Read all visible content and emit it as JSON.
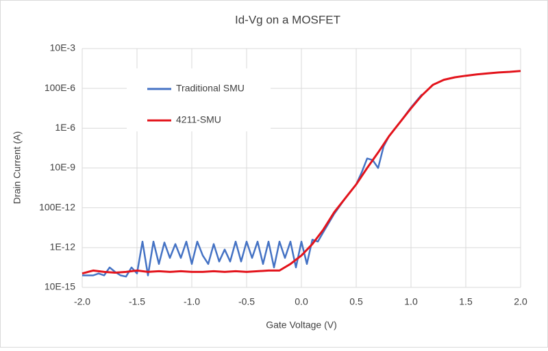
{
  "chart_data": {
    "type": "line",
    "title": "Id-Vg on a MOSFET",
    "x_label": "Gate Voltage (V)",
    "y_label": "Drain Current (A)",
    "log_y": true,
    "grid": true,
    "legend": "upper-left",
    "xlim": [
      -2,
      2
    ],
    "xticks": [
      {
        "value": -2,
        "label": "-2.0"
      },
      {
        "value": -1.5,
        "label": "-1.5"
      },
      {
        "value": -1,
        "label": "-1.0"
      },
      {
        "value": -0.5,
        "label": "-0.5"
      },
      {
        "value": 0,
        "label": "0.0"
      },
      0.5,
      {
        "value": 1,
        "label": "1.0"
      },
      1.5,
      {
        "value": 2,
        "label": "2.0"
      }
    ],
    "ylim": [
      1e-14,
      0.01
    ],
    "yticks": [
      {
        "value": 1e-14,
        "label": "10E-15"
      },
      {
        "value": 1e-12,
        "label": "1E-12"
      },
      {
        "value": 1e-10,
        "label": "100E-12"
      },
      {
        "value": 1e-08,
        "label": "10E-9"
      },
      {
        "value": 1e-06,
        "label": "1E-6"
      },
      {
        "value": 0.0001,
        "label": "100E-6"
      },
      {
        "value": 0.01,
        "label": "10E-3"
      }
    ],
    "series": [
      {
        "name": "Traditional SMU",
        "color": "#4472c4",
        "x": [
          -2.0,
          -1.9,
          -1.85,
          -1.8,
          -1.75,
          -1.7,
          -1.65,
          -1.6,
          -1.55,
          -1.5,
          -1.45,
          -1.4,
          -1.35,
          -1.3,
          -1.25,
          -1.2,
          -1.15,
          -1.1,
          -1.05,
          -1.0,
          -0.95,
          -0.9,
          -0.85,
          -0.8,
          -0.75,
          -0.7,
          -0.65,
          -0.6,
          -0.55,
          -0.5,
          -0.45,
          -0.4,
          -0.35,
          -0.3,
          -0.25,
          -0.2,
          -0.15,
          -0.1,
          -0.05,
          0.0,
          0.05,
          0.1,
          0.15,
          0.2,
          0.3,
          0.4,
          0.5,
          0.55,
          0.6,
          0.65,
          0.7,
          0.75,
          0.8,
          0.9,
          1.0,
          1.1
        ],
        "values": [
          4e-14,
          4e-14,
          5e-14,
          4e-14,
          1e-13,
          6e-14,
          4e-14,
          3.5e-14,
          1e-13,
          5e-14,
          2e-12,
          4e-14,
          2e-12,
          1.5e-13,
          1.8e-12,
          3e-13,
          1.5e-12,
          3e-13,
          2e-12,
          1.5e-13,
          2e-12,
          4e-13,
          1.5e-13,
          1.5e-12,
          2e-13,
          8e-13,
          2e-13,
          2e-12,
          2e-13,
          2e-12,
          3e-13,
          2e-12,
          1.5e-13,
          2e-12,
          1e-13,
          2e-12,
          3e-13,
          2e-12,
          1e-13,
          2e-12,
          1.5e-13,
          2.5e-12,
          2e-12,
          6e-12,
          5e-11,
          3e-10,
          1.5e-09,
          6e-09,
          3e-08,
          2.5e-08,
          1e-08,
          1.2e-07,
          4e-07,
          2e-06,
          1.1e-05,
          5e-05
        ]
      },
      {
        "name": "4211-SMU",
        "color": "#e3131b",
        "x": [
          -2.0,
          -1.9,
          -1.8,
          -1.7,
          -1.6,
          -1.5,
          -1.4,
          -1.3,
          -1.2,
          -1.1,
          -1.0,
          -0.9,
          -0.8,
          -0.7,
          -0.6,
          -0.5,
          -0.4,
          -0.3,
          -0.2,
          -0.1,
          0.0,
          0.1,
          0.2,
          0.3,
          0.4,
          0.5,
          0.6,
          0.7,
          0.8,
          0.9,
          1.0,
          1.1,
          1.2,
          1.3,
          1.4,
          1.5,
          1.6,
          1.7,
          1.8,
          1.9,
          2.0
        ],
        "values": [
          5e-14,
          7e-14,
          6e-14,
          5.5e-14,
          6e-14,
          7e-14,
          6e-14,
          6.5e-14,
          6e-14,
          6.5e-14,
          6e-14,
          6e-14,
          6.5e-14,
          6e-14,
          6.5e-14,
          6e-14,
          6.5e-14,
          7e-14,
          7e-14,
          1.5e-13,
          4e-13,
          1.5e-12,
          8e-12,
          6e-11,
          3e-10,
          1.5e-09,
          1e-08,
          6e-08,
          4e-07,
          2e-06,
          1e-05,
          4.5e-05,
          0.00015,
          0.00027,
          0.00036,
          0.00043,
          0.0005,
          0.00057,
          0.00063,
          0.00068,
          0.00075
        ]
      }
    ]
  }
}
